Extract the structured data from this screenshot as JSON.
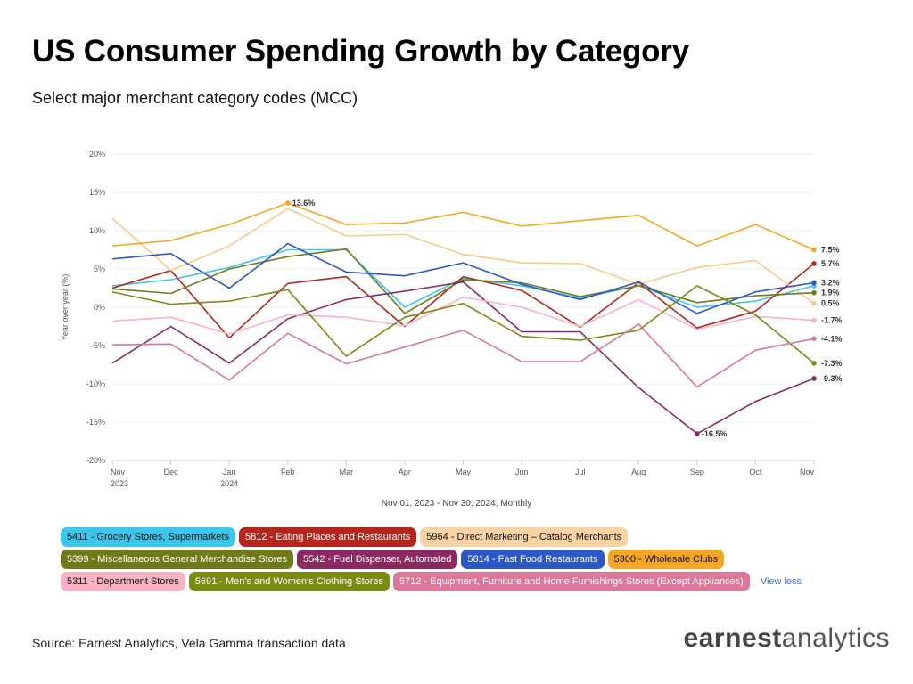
{
  "header": {
    "title": "US Consumer Spending Growth by Category",
    "subtitle": "Select major merchant category codes (MCC)"
  },
  "chart_data": {
    "type": "line",
    "ylabel": "Year over year (%)",
    "ylim": [
      -20,
      20
    ],
    "yticks": [
      20,
      15,
      10,
      5,
      0,
      -5,
      -10,
      -15,
      -20
    ],
    "ytick_labels": [
      "20%",
      "15%",
      "10%",
      "5%",
      "0%",
      "-5%",
      "-10%",
      "-15%",
      "-20%"
    ],
    "categories": [
      "Nov",
      "Dec",
      "Jan",
      "Feb",
      "Mar",
      "Apr",
      "May",
      "Jun",
      "Jul",
      "Aug",
      "Sep",
      "Oct",
      "Nov"
    ],
    "category_years": [
      "2023",
      "",
      "2024",
      "",
      "",
      "",
      "",
      "",
      "",
      "",
      "",
      "",
      ""
    ],
    "grid": true,
    "series": [
      {
        "name": "5411 - Grocery Stores, Supermarkets",
        "color": "#3ec6ea",
        "values": [
          2.8,
          3.6,
          5.2,
          7.5,
          7.5,
          0.0,
          3.8,
          2.8,
          1.2,
          2.8,
          0.0,
          0.8,
          2.8
        ]
      },
      {
        "name": "5812 - Eating Places and Restaurants",
        "color": "#b3261e",
        "values": [
          2.5,
          4.8,
          -4.0,
          3.1,
          4.0,
          -2.5,
          4.0,
          2.2,
          -2.6,
          3.2,
          -2.7,
          -0.5,
          5.7
        ]
      },
      {
        "name": "5964 - Direct Marketing – Catalog Merchants",
        "color": "#f9c98a",
        "values": [
          11.6,
          4.8,
          8.0,
          12.9,
          9.3,
          9.5,
          6.9,
          5.8,
          5.7,
          3.0,
          5.2,
          6.1,
          0.5
        ]
      },
      {
        "name": "5399 - Miscellaneous General Merchandise Stores",
        "color": "#6f7a1a",
        "values": [
          2.4,
          1.8,
          5.0,
          6.6,
          7.6,
          -0.8,
          3.6,
          3.2,
          1.4,
          2.8,
          0.6,
          1.5,
          1.9
        ]
      },
      {
        "name": "5542 - Fuel Dispenser, Automated",
        "color": "#8b2a62",
        "values": [
          -7.3,
          -2.5,
          -7.3,
          -1.5,
          1.0,
          2.1,
          3.3,
          -3.2,
          -3.2,
          -10.5,
          -16.5,
          -12.3,
          -9.3
        ]
      },
      {
        "name": "5814 - Fast Food Restaurants",
        "color": "#2c57c4",
        "values": [
          6.3,
          7.0,
          2.5,
          8.3,
          4.6,
          4.1,
          5.8,
          3.0,
          1.0,
          3.3,
          -0.8,
          2.0,
          3.2
        ]
      },
      {
        "name": "5300 - Wholesale Clubs",
        "color": "#f5a623",
        "values": [
          8.0,
          8.7,
          10.8,
          13.6,
          10.8,
          11.0,
          12.4,
          10.6,
          11.3,
          12.0,
          8.0,
          10.8,
          7.5
        ]
      },
      {
        "name": "5311 - Department Stores",
        "color": "#f8b2c4",
        "values": [
          -1.8,
          -1.3,
          -3.5,
          -1.0,
          -1.3,
          -2.4,
          1.3,
          0.0,
          -2.5,
          1.0,
          -2.9,
          -1.2,
          -1.7
        ]
      },
      {
        "name": "5691 - Men's and Women's Clothing Stores",
        "color": "#7a8a12",
        "values": [
          2.0,
          0.4,
          0.8,
          2.3,
          -6.4,
          -1.3,
          0.5,
          -3.8,
          -4.3,
          -3.0,
          2.8,
          -1.0,
          -7.3
        ]
      },
      {
        "name": "5712 - Equipment, Furniture and Home Furnishings Stores (Except Appliances)",
        "color": "#d97898",
        "values": [
          -4.9,
          -4.8,
          -9.5,
          -3.4,
          -7.4,
          -5.2,
          -3.0,
          -7.1,
          -7.1,
          -2.2,
          -10.4,
          -5.6,
          -4.1
        ]
      }
    ],
    "end_labels": [
      "7.5%",
      "5.7%",
      "3.2%",
      "1.9%",
      "0.5%",
      "-1.7%",
      "-4.1%",
      "-7.3%",
      "-9.3%"
    ],
    "callouts": [
      {
        "series": "5300 - Wholesale Clubs",
        "category_index": 3,
        "label": "13.6%"
      },
      {
        "series": "5542 - Fuel Dispenser, Automated",
        "category_index": 10,
        "label": "-16.5%"
      }
    ]
  },
  "date_range": "Nov 01, 2023 - Nov 30, 2024, Monthly",
  "legend": {
    "rows": [
      [
        {
          "label": "5411 - Grocery Stores, Supermarkets",
          "bg": "#3ec6ea",
          "fg": "#111111"
        },
        {
          "label": "5812 - Eating Places and Restaurants",
          "bg": "#b3261e",
          "fg": "#ffffff"
        },
        {
          "label": "5964 - Direct Marketing – Catalog Merchants",
          "bg": "#f9d3a3",
          "fg": "#111111"
        }
      ],
      [
        {
          "label": "5399 - Miscellaneous General Merchandise Stores",
          "bg": "#6f7a1a",
          "fg": "#ffffff"
        },
        {
          "label": "5542 - Fuel Dispenser, Automated",
          "bg": "#8b2a62",
          "fg": "#ffffff"
        },
        {
          "label": "5814 - Fast Food Restaurants",
          "bg": "#2c57c4",
          "fg": "#ffffff"
        },
        {
          "label": "5300 - Wholesale Clubs",
          "bg": "#f5a623",
          "fg": "#111111"
        }
      ],
      [
        {
          "label": "5311 - Department Stores",
          "bg": "#f8b2c4",
          "fg": "#111111"
        },
        {
          "label": "5691 - Men's and Women's Clothing Stores",
          "bg": "#7a8a12",
          "fg": "#ffffff"
        },
        {
          "label": "5712 - Equipment, Furniture and Home Furnishings Stores (Except Appliances)",
          "bg": "#d97898",
          "fg": "#ffffff"
        }
      ]
    ],
    "view_less": "View less"
  },
  "footer": {
    "source": "Source: Earnest Analytics, Vela Gamma transaction data",
    "brand_bold": "earnest",
    "brand_light": "analytics"
  }
}
